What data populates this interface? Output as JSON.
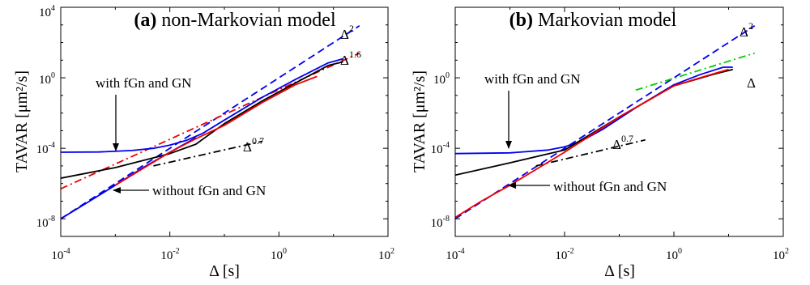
{
  "chart_data": [
    {
      "type": "line",
      "panel_label": "(a)",
      "title": "non-Markovian model",
      "xlabel": "Δ [s]",
      "ylabel": "TAVAR [μm²/s]",
      "x_scale": "log",
      "y_scale": "log",
      "xlim": [
        0.0001,
        100
      ],
      "ylim": [
        1e-09,
        10000
      ],
      "x_ticks": [
        {
          "value": 0.0001,
          "base": "10",
          "exp": "-4"
        },
        {
          "value": 0.01,
          "base": "10",
          "exp": "-2"
        },
        {
          "value": 1,
          "base": "10",
          "exp": "0"
        },
        {
          "value": 100,
          "base": "10",
          "exp": "2"
        }
      ],
      "y_ticks": [
        {
          "value": 1e-08,
          "base": "10",
          "exp": "-8"
        },
        {
          "value": 0.0001,
          "base": "10",
          "exp": "-4"
        },
        {
          "value": 1,
          "base": "10",
          "exp": "0"
        },
        {
          "value": 10000,
          "base": "10",
          "exp": "4"
        }
      ],
      "series": [
        {
          "color": "#0000ee",
          "dash": "dashed",
          "x": [
            0.0001,
            30
          ],
          "y": [
            1e-08,
            900
          ]
        },
        {
          "color": "#ee0000",
          "dash": "dashdot",
          "x": [
            0.0001,
            30
          ],
          "y": [
            5e-07,
            25
          ]
        },
        {
          "color": "#000000",
          "dash": "dashdot",
          "x": [
            0.005,
            0.5
          ],
          "y": [
            1e-05,
            0.00025
          ]
        },
        {
          "color": "#0000ee",
          "dash": "solid",
          "x": [
            0.0001,
            0.0005,
            0.002,
            0.005,
            0.01,
            0.02,
            0.04,
            0.1,
            0.5,
            2,
            8,
            15
          ],
          "y": [
            6e-05,
            6.2e-05,
            7.5e-05,
            0.0001,
            0.00015,
            0.00028,
            0.0007,
            0.004,
            0.08,
            0.8,
            7,
            12
          ]
        },
        {
          "color": "#000000",
          "dash": "solid",
          "x": [
            0.0001,
            0.001,
            0.01,
            0.03,
            0.1,
            0.5,
            2,
            8,
            15
          ],
          "y": [
            2e-06,
            8e-06,
            5e-05,
            0.00017,
            0.0025,
            0.05,
            0.5,
            5,
            8
          ]
        },
        {
          "color": "#0000ee",
          "dash": "solid",
          "x": [
            0.0001,
            0.0003,
            0.001,
            0.003,
            0.01,
            0.03
          ],
          "y": [
            1e-08,
            8e-08,
            8e-07,
            7e-06,
            6e-05,
            0.0004
          ]
        },
        {
          "color": "#ee0000",
          "dash": "solid",
          "x": [
            0.001,
            0.01,
            0.03,
            0.1,
            0.5,
            2,
            5
          ],
          "y": [
            8e-07,
            6e-05,
            0.00035,
            0.002,
            0.04,
            0.4,
            1.2
          ]
        }
      ],
      "annotations": [
        {
          "text": "with fGn and GN",
          "arrow": {
            "x": 0.001,
            "y": 6e-05
          }
        },
        {
          "text": "without fGn and GN",
          "arrow": {
            "x": 0.001,
            "y": 8e-07
          }
        },
        {
          "base": "Δ",
          "exp": "2"
        },
        {
          "base": "Δ",
          "exp": "1.6"
        },
        {
          "base": "Δ",
          "exp": "0.7"
        }
      ]
    },
    {
      "type": "line",
      "panel_label": "(b)",
      "title": "Markovian model",
      "xlabel": "Δ [s]",
      "ylabel": "TAVAR [μm²/s]",
      "x_scale": "log",
      "y_scale": "log",
      "xlim": [
        0.0001,
        100
      ],
      "ylim": [
        1e-09,
        10000
      ],
      "x_ticks": [
        {
          "value": 0.0001,
          "base": "10",
          "exp": "-4"
        },
        {
          "value": 0.01,
          "base": "10",
          "exp": "-2"
        },
        {
          "value": 1,
          "base": "10",
          "exp": "0"
        },
        {
          "value": 100,
          "base": "10",
          "exp": "2"
        }
      ],
      "y_ticks": [
        {
          "value": 1e-08,
          "base": "10",
          "exp": "-8"
        },
        {
          "value": 0.0001,
          "base": "10",
          "exp": "-4"
        },
        {
          "value": 1,
          "base": "10",
          "exp": "0"
        }
      ],
      "series": [
        {
          "color": "#0000ee",
          "dash": "dashed",
          "x": [
            0.0001,
            30
          ],
          "y": [
            1e-08,
            900
          ]
        },
        {
          "color": "#00cc00",
          "dash": "dashdot",
          "x": [
            0.2,
            30
          ],
          "y": [
            0.2,
            25
          ]
        },
        {
          "color": "#000000",
          "dash": "dashdot",
          "x": [
            0.003,
            0.3
          ],
          "y": [
            1e-05,
            0.0003
          ]
        },
        {
          "color": "#0000ee",
          "dash": "solid",
          "x": [
            0.0001,
            0.001,
            0.005,
            0.01,
            0.02,
            0.05,
            0.2,
            1,
            3,
            8,
            12
          ],
          "y": [
            5e-05,
            5.5e-05,
            8e-05,
            0.00012,
            0.00025,
            0.0012,
            0.02,
            0.4,
            1.5,
            4,
            4
          ]
        },
        {
          "color": "#000000",
          "dash": "solid",
          "x": [
            0.0001,
            0.001,
            0.01,
            0.1,
            1,
            5,
            12
          ],
          "y": [
            3e-06,
            1.5e-05,
            8e-05,
            0.006,
            0.35,
            1.5,
            3
          ]
        },
        {
          "color": "#ee0000",
          "dash": "solid",
          "x": [
            0.0001,
            0.0003,
            0.001,
            0.01,
            0.1,
            1,
            3,
            10
          ],
          "y": [
            1.2e-08,
            1e-07,
            8e-07,
            6e-05,
            0.006,
            0.35,
            1,
            3
          ]
        }
      ],
      "annotations": [
        {
          "text": "with fGn and GN",
          "arrow": {
            "x": 0.01,
            "y": 5.5e-05
          }
        },
        {
          "text": "without fGn and GN",
          "arrow": {
            "x": 0.001,
            "y": 8e-07
          }
        },
        {
          "base": "Δ",
          "exp": "2"
        },
        {
          "base": "Δ",
          "exp": ""
        },
        {
          "base": "Δ",
          "exp": "0.7"
        }
      ]
    }
  ]
}
